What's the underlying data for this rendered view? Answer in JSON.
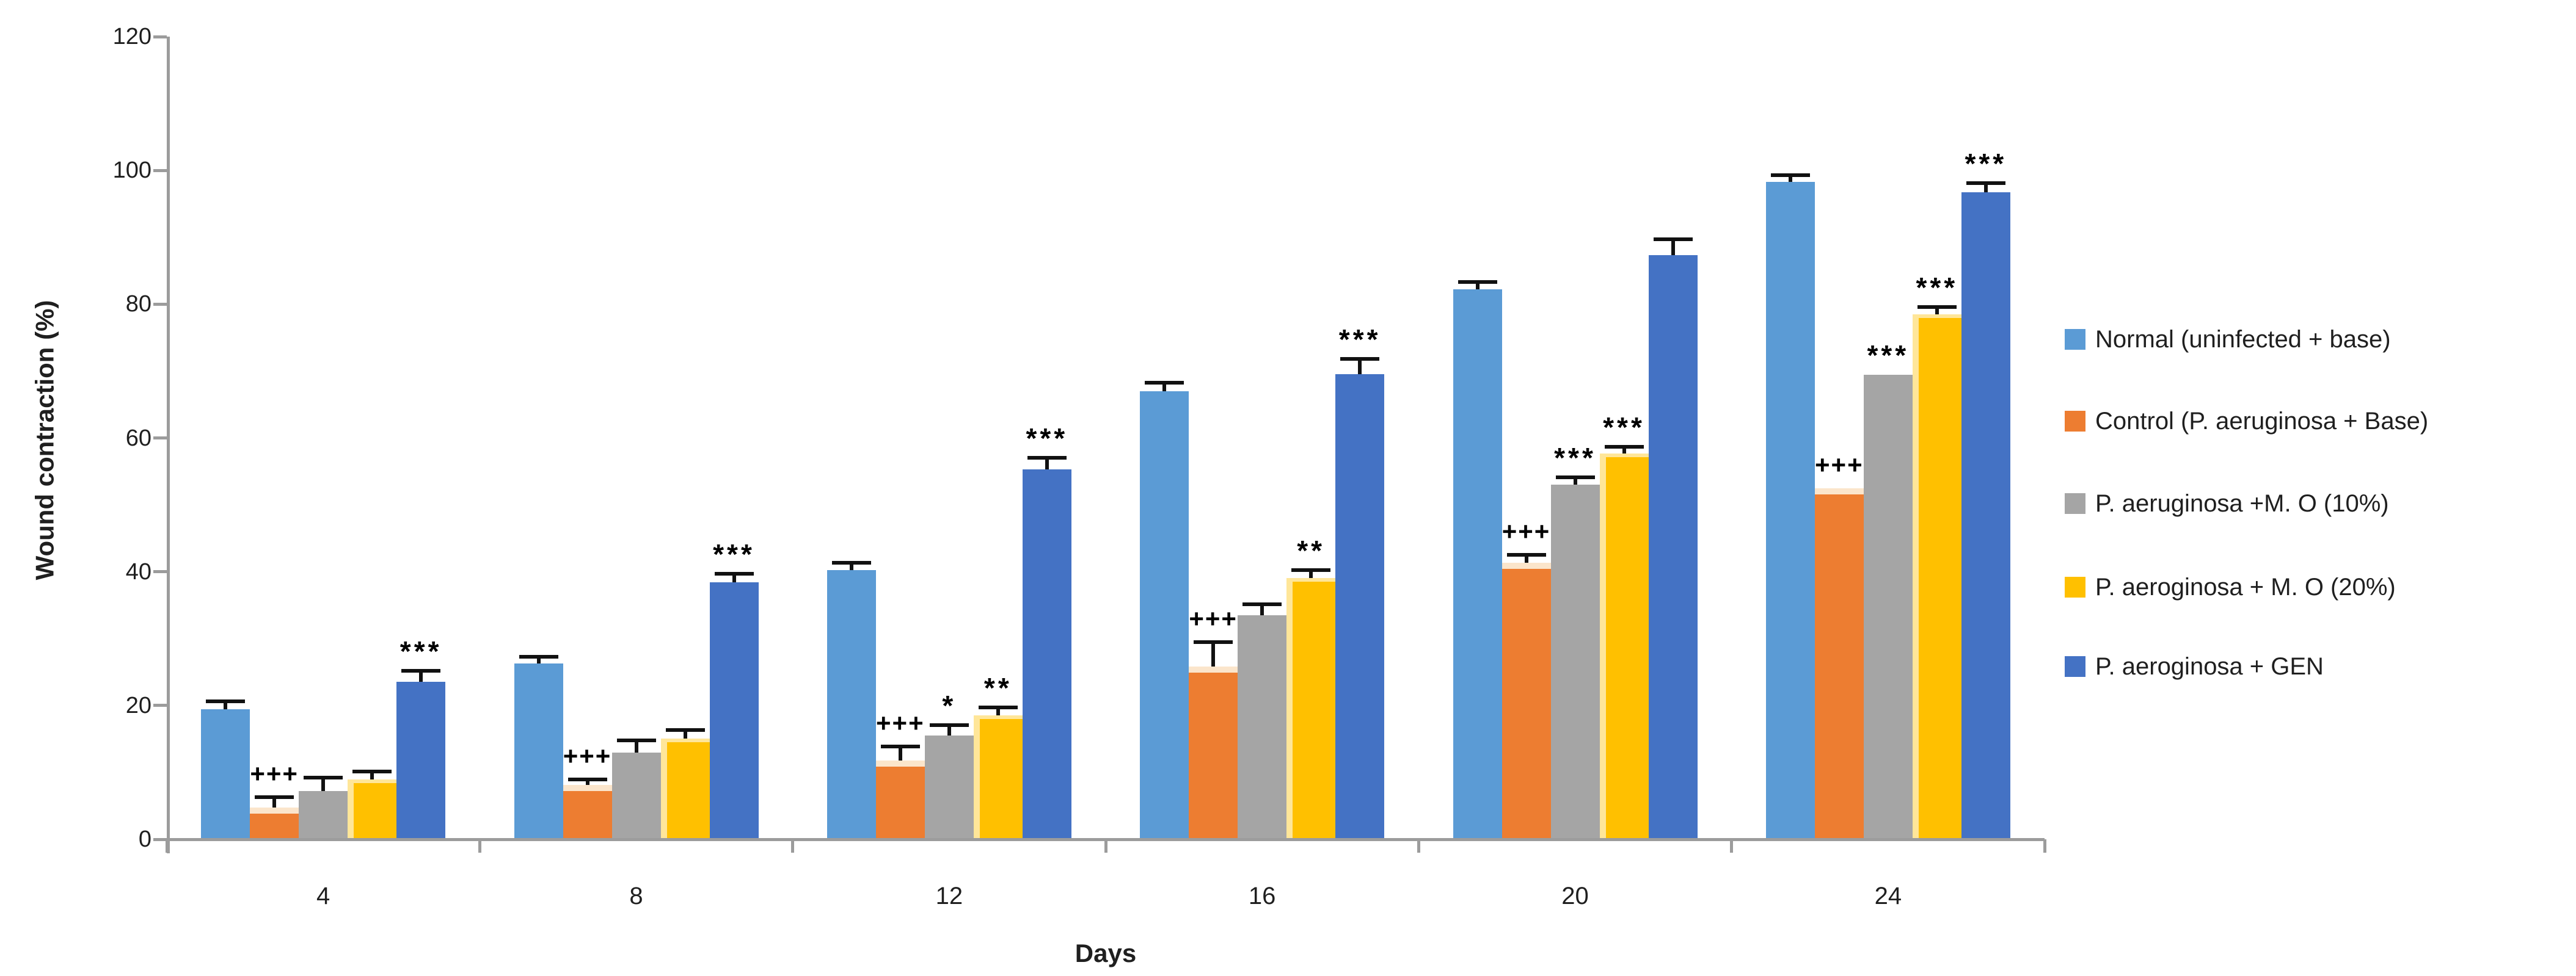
{
  "chart_data": {
    "type": "bar",
    "title": "",
    "xlabel": "Days",
    "ylabel": "Wound contraction (%)",
    "ylim": [
      0,
      120
    ],
    "ytick_step": 20,
    "yticks": [
      "0",
      "20",
      "40",
      "60",
      "80",
      "100",
      "120"
    ],
    "categories": [
      "4",
      "8",
      "12",
      "16",
      "20",
      "24"
    ],
    "grid": false,
    "legend_position": "right",
    "series": [
      {
        "name": "Normal (uninfected + base)",
        "color": "#5B9BD5",
        "values": [
          19.4,
          26.3,
          40.2,
          67.0,
          82.2,
          98.3
        ],
        "errors": [
          1.2,
          1.0,
          1.1,
          1.3,
          1.1,
          1.0
        ],
        "sig": [
          "",
          "",
          "",
          "",
          "",
          ""
        ]
      },
      {
        "name": "Control (P. aeruginosa + Base)",
        "color": "#ED7D31",
        "values": [
          4.7,
          8.1,
          11.8,
          25.8,
          41.3,
          52.5
        ],
        "errors": [
          1.6,
          0.8,
          2.1,
          3.7,
          1.2,
          0
        ],
        "sig": [
          "+++",
          "+++",
          "+++",
          "+++",
          "+++",
          "+++"
        ]
      },
      {
        "name": "P. aeruginosa +M. O (10%)",
        "color": "#A5A5A5",
        "values": [
          7.2,
          13.0,
          15.5,
          33.5,
          53.0,
          69.4
        ],
        "errors": [
          2.0,
          1.8,
          1.6,
          1.6,
          1.1,
          0
        ],
        "sig": [
          "",
          "",
          "*",
          "",
          "***",
          "***"
        ]
      },
      {
        "name": "P. aeroginosa + M. O (20%)",
        "color": "#FFC000",
        "values": [
          8.9,
          15.1,
          18.5,
          39.1,
          57.7,
          78.5
        ],
        "errors": [
          1.2,
          1.2,
          1.2,
          1.1,
          1.0,
          1.1
        ],
        "sig": [
          "",
          "",
          "**",
          "**",
          "***",
          "***"
        ]
      },
      {
        "name": "P. aeroginosa + GEN",
        "color": "#4472C4",
        "values": [
          23.5,
          38.4,
          55.3,
          69.5,
          87.3,
          96.7
        ],
        "errors": [
          1.7,
          1.3,
          1.7,
          2.3,
          2.4,
          1.4
        ],
        "sig": [
          "***",
          "***",
          "***",
          "***",
          "",
          "***"
        ]
      }
    ]
  },
  "colors": {
    "axis": "#9C9C9C",
    "text": "#1F1F1F",
    "annotation": "#000000"
  }
}
